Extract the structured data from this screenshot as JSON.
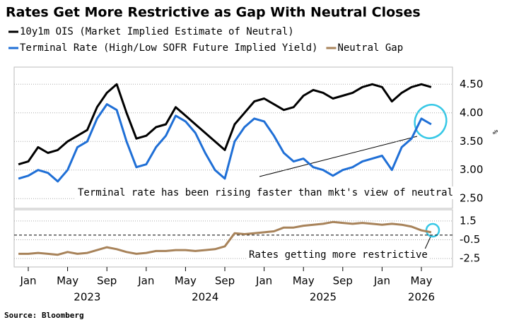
{
  "source": "Source: Bloomberg",
  "chart_data": [
    {
      "type": "line",
      "title": "Rates Get More Restrictive as Gap With Neutral Closes",
      "y_label": "%",
      "annotation": "Terminal rate has been rising faster than mkt's view of neutral",
      "x": [
        "2022-12",
        "2023-01",
        "2023-02",
        "2023-03",
        "2023-04",
        "2023-05",
        "2023-06",
        "2023-07",
        "2023-08",
        "2023-09",
        "2023-10",
        "2023-11",
        "2023-12",
        "2024-01",
        "2024-02",
        "2024-03",
        "2024-04",
        "2024-05",
        "2024-06",
        "2024-07",
        "2024-08",
        "2024-09",
        "2024-10",
        "2024-11",
        "2024-12",
        "2025-01",
        "2025-02",
        "2025-03",
        "2025-04",
        "2025-05",
        "2025-06",
        "2025-07",
        "2025-08",
        "2025-09",
        "2025-10",
        "2025-11",
        "2025-12",
        "2026-01",
        "2026-02",
        "2026-03",
        "2026-04",
        "2026-05",
        "2026-06"
      ],
      "series": [
        {
          "name": "10y1m OIS (Market Implied Estimate of Neutral)",
          "color": "#000000",
          "values": [
            3.1,
            3.15,
            3.4,
            3.3,
            3.35,
            3.5,
            3.6,
            3.7,
            4.1,
            4.35,
            4.5,
            4.0,
            3.55,
            3.6,
            3.75,
            3.8,
            4.1,
            3.95,
            3.8,
            3.65,
            3.5,
            3.35,
            3.8,
            4.0,
            4.2,
            4.25,
            4.15,
            4.05,
            4.1,
            4.3,
            4.4,
            4.35,
            4.25,
            4.3,
            4.35,
            4.45,
            4.5,
            4.45,
            4.2,
            4.35,
            4.45,
            4.5,
            4.45
          ]
        },
        {
          "name": "Terminal Rate (High/Low SOFR Future Implied Yield)",
          "color": "#1f6fd6",
          "values": [
            2.85,
            2.9,
            3.0,
            2.95,
            2.8,
            3.0,
            3.4,
            3.5,
            3.9,
            4.15,
            4.05,
            3.5,
            3.05,
            3.1,
            3.4,
            3.6,
            3.95,
            3.85,
            3.65,
            3.3,
            3.0,
            2.85,
            3.5,
            3.75,
            3.9,
            3.85,
            3.6,
            3.3,
            3.15,
            3.2,
            3.05,
            3.0,
            2.9,
            3.0,
            3.05,
            3.15,
            3.2,
            3.25,
            3.0,
            3.4,
            3.55,
            3.9,
            3.8
          ]
        }
      ],
      "ylim": [
        2.33,
        4.8
      ],
      "yticks": [
        {
          "value": 2.5,
          "label": "2.50"
        },
        {
          "value": 3,
          "label": "3.00"
        },
        {
          "value": 3.5,
          "label": "3.50"
        },
        {
          "value": 4,
          "label": "4.00"
        },
        {
          "value": 4.5,
          "label": "4.50"
        }
      ],
      "grid": true
    },
    {
      "type": "line",
      "annotation": "Rates getting more restrictive",
      "x": [
        "2022-12",
        "2023-01",
        "2023-02",
        "2023-03",
        "2023-04",
        "2023-05",
        "2023-06",
        "2023-07",
        "2023-08",
        "2023-09",
        "2023-10",
        "2023-11",
        "2023-12",
        "2024-01",
        "2024-02",
        "2024-03",
        "2024-04",
        "2024-05",
        "2024-06",
        "2024-07",
        "2024-08",
        "2024-09",
        "2024-10",
        "2024-11",
        "2024-12",
        "2025-01",
        "2025-02",
        "2025-03",
        "2025-04",
        "2025-05",
        "2025-06",
        "2025-07",
        "2025-08",
        "2025-09",
        "2025-10",
        "2025-11",
        "2025-12",
        "2026-01",
        "2026-02",
        "2026-03",
        "2026-04",
        "2026-05",
        "2026-06"
      ],
      "series": [
        {
          "name": "Neutral Gap",
          "color": "#a8835a",
          "values": [
            -2.0,
            -2.0,
            -1.9,
            -2.0,
            -2.1,
            -1.8,
            -2.0,
            -1.9,
            -1.6,
            -1.3,
            -1.5,
            -1.8,
            -2.0,
            -1.9,
            -1.7,
            -1.7,
            -1.6,
            -1.6,
            -1.7,
            -1.6,
            -1.5,
            -1.2,
            0.2,
            0.1,
            0.2,
            0.3,
            0.4,
            0.8,
            0.8,
            1.0,
            1.1,
            1.2,
            1.4,
            1.3,
            1.2,
            1.3,
            1.2,
            1.1,
            1.2,
            1.1,
            0.9,
            0.5,
            0.3
          ]
        }
      ],
      "ylim": [
        -3.4,
        2.7
      ],
      "yticks": [
        -2.5,
        -0.5,
        1.5
      ],
      "grid": true,
      "zero_line": true,
      "xticks": [
        {
          "value": "2023-01",
          "label": "Jan"
        },
        {
          "value": "2023-05",
          "label": "May"
        },
        {
          "value": "2023-09",
          "label": "Sep"
        },
        {
          "value": "2024-01",
          "label": "Jan"
        },
        {
          "value": "2024-05",
          "label": "May"
        },
        {
          "value": "2024-09",
          "label": "Sep"
        },
        {
          "value": "2025-01",
          "label": "Jan"
        },
        {
          "value": "2025-05",
          "label": "May"
        },
        {
          "value": "2025-09",
          "label": "Sep"
        },
        {
          "value": "2026-01",
          "label": "Jan"
        },
        {
          "value": "2026-05",
          "label": "May"
        }
      ],
      "year_ticks": [
        {
          "value": "2023-07",
          "label": "2023"
        },
        {
          "value": "2024-07",
          "label": "2024"
        },
        {
          "value": "2025-07",
          "label": "2025"
        },
        {
          "value": "2026-05",
          "label": "2026"
        }
      ]
    }
  ]
}
